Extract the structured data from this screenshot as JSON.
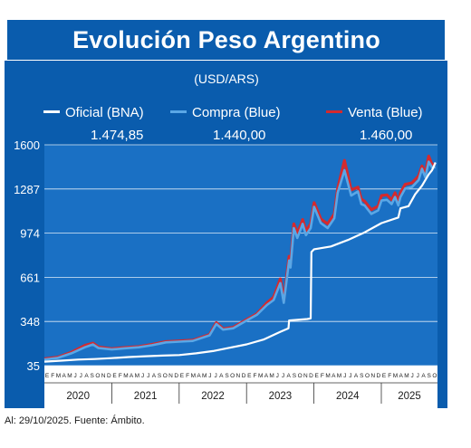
{
  "header": {
    "title": "Evolución Peso Argentino",
    "subtitle": "(USD/ARS)"
  },
  "legend": [
    {
      "name": "Oficial (BNA)",
      "color": "#ffffff",
      "last_value": "1.474,85"
    },
    {
      "name": "Compra (Blue)",
      "color": "#5aa7e6",
      "last_value": "1.440,00"
    },
    {
      "name": "Venta (Blue)",
      "color": "#d42a2e",
      "last_value": "1.460,00"
    }
  ],
  "footer": "Al: 29/10/2025. Fuente: Ámbito.",
  "colors": {
    "header_bg": "#0a5cad",
    "plot_bg": "#1a70c4",
    "frame": "#4b88c9"
  },
  "chart_data": {
    "type": "line",
    "title": "Evolución Peso Argentino",
    "subtitle": "(USD/ARS)",
    "xlabel": "",
    "ylabel": "",
    "xlim": [
      2020.0,
      2025.83
    ],
    "ylim": [
      35,
      1600
    ],
    "yticks": [
      35,
      348,
      661,
      974,
      1287,
      1600
    ],
    "ytick_labels": [
      "35",
      "348",
      "661",
      "974",
      "1287",
      "1600"
    ],
    "years": [
      "2020",
      "2021",
      "2022",
      "2023",
      "2024",
      "2025"
    ],
    "month_letters": [
      "E",
      "F",
      "M",
      "A",
      "M",
      "J",
      "J",
      "A",
      "S",
      "O",
      "N",
      "D"
    ],
    "grid": "horizontal",
    "legend_position": "top",
    "series": [
      {
        "name": "Oficial (BNA)",
        "x": [
          2020.0,
          2020.25,
          2020.5,
          2020.75,
          2021.0,
          2021.25,
          2021.5,
          2021.75,
          2022.0,
          2022.25,
          2022.5,
          2022.75,
          2023.0,
          2023.25,
          2023.5,
          2023.62,
          2023.63,
          2023.9,
          2023.95,
          2023.96,
          2024.0,
          2024.25,
          2024.5,
          2024.75,
          2025.0,
          2025.25,
          2025.28,
          2025.4,
          2025.5,
          2025.6,
          2025.7,
          2025.75,
          2025.8
        ],
        "y": [
          63,
          70,
          78,
          82,
          88,
          96,
          102,
          106,
          110,
          122,
          138,
          162,
          186,
          220,
          275,
          300,
          355,
          365,
          370,
          840,
          860,
          880,
          925,
          980,
          1045,
          1085,
          1150,
          1165,
          1250,
          1310,
          1390,
          1420,
          1475
        ]
      },
      {
        "name": "Compra (Blue)",
        "x": [
          2020.0,
          2020.2,
          2020.4,
          2020.6,
          2020.72,
          2020.8,
          2021.0,
          2021.2,
          2021.4,
          2021.6,
          2021.8,
          2022.0,
          2022.2,
          2022.45,
          2022.55,
          2022.65,
          2022.8,
          2023.0,
          2023.15,
          2023.3,
          2023.4,
          2023.5,
          2023.55,
          2023.63,
          2023.65,
          2023.7,
          2023.75,
          2023.8,
          2023.83,
          2023.88,
          2023.95,
          2024.0,
          2024.1,
          2024.2,
          2024.3,
          2024.35,
          2024.45,
          2024.55,
          2024.65,
          2024.7,
          2024.75,
          2024.85,
          2024.95,
          2025.0,
          2025.08,
          2025.15,
          2025.2,
          2025.25,
          2025.28,
          2025.35,
          2025.45,
          2025.55,
          2025.6,
          2025.65,
          2025.7,
          2025.75,
          2025.8
        ],
        "y": [
          78,
          90,
          122,
          165,
          185,
          160,
          150,
          158,
          165,
          180,
          200,
          205,
          210,
          250,
          330,
          290,
          300,
          355,
          395,
          465,
          500,
          620,
          480,
          780,
          730,
          1010,
          940,
          1000,
          1040,
          960,
          1010,
          1160,
          1045,
          1010,
          1080,
          1260,
          1420,
          1240,
          1270,
          1180,
          1170,
          1110,
          1135,
          1205,
          1210,
          1180,
          1230,
          1170,
          1230,
          1290,
          1300,
          1350,
          1430,
          1370,
          1480,
          1440,
          1440
        ]
      },
      {
        "name": "Venta (Blue)",
        "x": [
          2020.0,
          2020.2,
          2020.4,
          2020.6,
          2020.72,
          2020.8,
          2021.0,
          2021.2,
          2021.4,
          2021.6,
          2021.8,
          2022.0,
          2022.2,
          2022.45,
          2022.55,
          2022.65,
          2022.8,
          2023.0,
          2023.15,
          2023.3,
          2023.4,
          2023.5,
          2023.55,
          2023.63,
          2023.65,
          2023.7,
          2023.75,
          2023.8,
          2023.83,
          2023.88,
          2023.95,
          2024.0,
          2024.1,
          2024.2,
          2024.3,
          2024.35,
          2024.45,
          2024.55,
          2024.65,
          2024.7,
          2024.75,
          2024.85,
          2024.95,
          2025.0,
          2025.08,
          2025.15,
          2025.2,
          2025.25,
          2025.28,
          2025.35,
          2025.45,
          2025.55,
          2025.6,
          2025.65,
          2025.7,
          2025.75,
          2025.8
        ],
        "y": [
          83,
          95,
          130,
          178,
          195,
          168,
          155,
          163,
          170,
          186,
          205,
          210,
          215,
          255,
          340,
          296,
          306,
          362,
          402,
          480,
          520,
          650,
          495,
          810,
          755,
          1040,
          975,
          1030,
          1070,
          990,
          1040,
          1190,
          1075,
          1040,
          1110,
          1290,
          1490,
          1280,
          1300,
          1215,
          1200,
          1140,
          1165,
          1240,
          1245,
          1210,
          1260,
          1200,
          1260,
          1320,
          1330,
          1380,
          1450,
          1400,
          1520,
          1460,
          1460
        ]
      }
    ]
  }
}
